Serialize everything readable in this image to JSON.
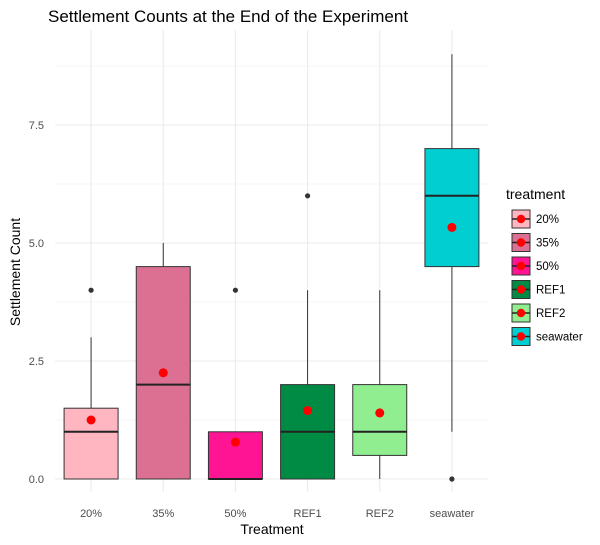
{
  "chart_data": {
    "type": "boxplot",
    "title": "Settlement Counts at the End of the Experiment",
    "xlabel": "Treatment",
    "ylabel": "Settlement Count",
    "categories": [
      "20%",
      "35%",
      "50%",
      "REF1",
      "REF2",
      "seawater"
    ],
    "ylim": [
      0,
      9
    ],
    "yticks": [
      {
        "value": 0,
        "label": "0.0"
      },
      {
        "value": 2.5,
        "label": "2.5"
      },
      {
        "value": 5,
        "label": "5.0"
      },
      {
        "value": 7.5,
        "label": "7.5"
      }
    ],
    "grid": true,
    "legend": {
      "title": "treatment",
      "position": "right",
      "entries": [
        "20%",
        "35%",
        "50%",
        "REF1",
        "REF2",
        "seawater"
      ]
    },
    "mean_marker_color": "#ff0000",
    "outlier_color": "#333333",
    "series": [
      {
        "category": "20%",
        "color": "#ffb6c1",
        "whisker_low": 0,
        "q1": 0,
        "median": 1,
        "q3": 1.5,
        "whisker_high": 3,
        "mean": 1.25,
        "outliers": [
          4
        ]
      },
      {
        "category": "35%",
        "color": "#db7093",
        "whisker_low": 0,
        "q1": 0,
        "median": 2,
        "q3": 4.5,
        "whisker_high": 5,
        "mean": 2.25,
        "outliers": []
      },
      {
        "category": "50%",
        "color": "#ff1493",
        "whisker_low": 0,
        "q1": 0,
        "median": 0,
        "q3": 1,
        "whisker_high": 1,
        "mean": 0.78,
        "outliers": [
          4
        ]
      },
      {
        "category": "REF1",
        "color": "#008b45",
        "whisker_low": 0,
        "q1": 0,
        "median": 1,
        "q3": 2,
        "whisker_high": 4,
        "mean": 1.45,
        "outliers": [
          6
        ]
      },
      {
        "category": "REF2",
        "color": "#90ee90",
        "whisker_low": 0,
        "q1": 0.5,
        "median": 1,
        "q3": 2,
        "whisker_high": 4,
        "mean": 1.4,
        "outliers": []
      },
      {
        "category": "seawater",
        "color": "#00ced1",
        "whisker_low": 1,
        "q1": 4.5,
        "median": 6,
        "q3": 7,
        "whisker_high": 9,
        "mean": 5.33,
        "outliers": [
          0
        ]
      }
    ]
  }
}
